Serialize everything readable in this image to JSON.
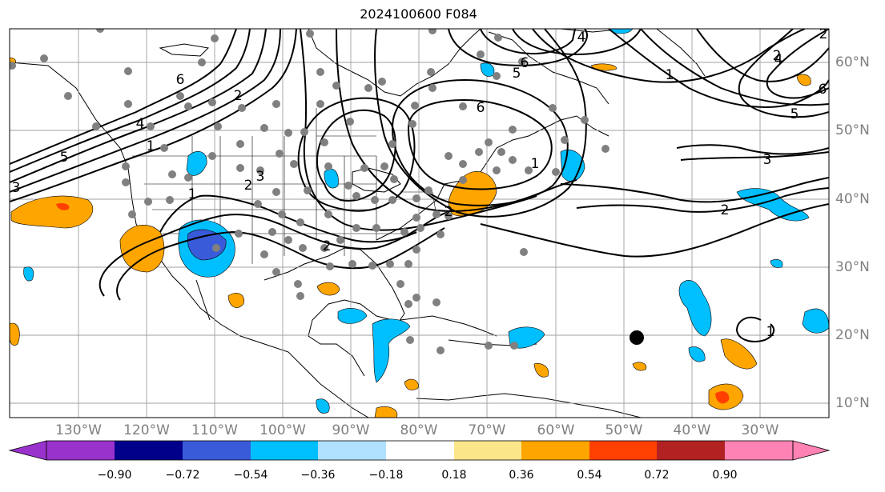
{
  "title": "2024100600 F084",
  "lon_labels": [
    "130°W",
    "120°W",
    "110°W",
    "100°W",
    "90°W",
    "80°W",
    "70°W",
    "60°W",
    "50°W",
    "40°W",
    "30°W"
  ],
  "lat_labels": [
    "60°N",
    "50°N",
    "40°N",
    "30°N",
    "20°N",
    "10°N"
  ],
  "contour_labels": [
    "6",
    "2",
    "5",
    "4",
    "1",
    "3",
    "2",
    "1",
    "2",
    "6",
    "5",
    "4",
    "2",
    "1",
    "2",
    "3",
    "5",
    "6",
    "2",
    "3",
    "1",
    "2",
    "1",
    "6",
    "4"
  ],
  "colorbar": {
    "ticks": [
      "−0.90",
      "−0.72",
      "−0.54",
      "−0.36",
      "−0.18",
      "0.18",
      "0.36",
      "0.54",
      "0.72",
      "0.90"
    ],
    "colors": [
      "#9932cc",
      "#00008b",
      "#3a5bd9",
      "#00bfff",
      "#b0e0ff",
      "#ffffff",
      "#fce68a",
      "#ffa500",
      "#ff4000",
      "#b22222",
      "#ff82b4"
    ]
  },
  "colors": {
    "blue": "#00bfff",
    "dark_blue": "#3a5bd9",
    "orange": "#ffa500",
    "red_orange": "#ff4000",
    "marker_gray": "#808080"
  }
}
